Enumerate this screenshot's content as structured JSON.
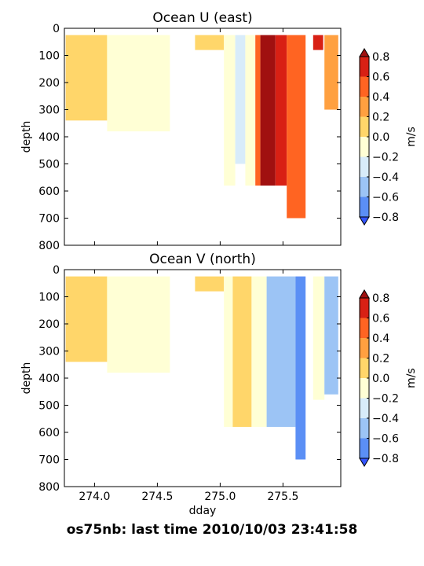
{
  "footer": {
    "text": "os75nb: last time 2010/10/03 23:41:58"
  },
  "colormap": {
    "levels": [
      -0.8,
      -0.6,
      -0.4,
      -0.2,
      0.0,
      0.2,
      0.4,
      0.6,
      0.8
    ],
    "colors": [
      "#3355ff",
      "#5b8ff5",
      "#9cc4f5",
      "#d8ecfa",
      "#ffffd5",
      "#ffd66a",
      "#ffa040",
      "#ff6422",
      "#d82014",
      "#a01010"
    ],
    "tick_labels": [
      "0.8",
      "0.6",
      "0.4",
      "0.2",
      "0.0",
      "−0.2",
      "−0.4",
      "−0.6",
      "−0.8"
    ],
    "unit_label": "m/s"
  },
  "chart_data": [
    {
      "type": "heatmap",
      "title": "Ocean U (east)",
      "xlabel": "",
      "ylabel": "depth",
      "xlim": [
        273.76,
        275.96
      ],
      "ylim": [
        800,
        0
      ],
      "yticks": [
        "0",
        "100",
        "200",
        "300",
        "400",
        "500",
        "600",
        "700",
        "800"
      ],
      "xtick_values": [
        274.0,
        274.5,
        275.0,
        275.5
      ],
      "grid": false,
      "colorbar": "right",
      "bands": [
        {
          "x0": 273.77,
          "x1": 274.1,
          "top": 25,
          "bottom": 340,
          "value": 0.05
        },
        {
          "x0": 274.1,
          "x1": 274.6,
          "top": 25,
          "bottom": 380,
          "value": -0.05
        },
        {
          "x0": 274.8,
          "x1": 275.03,
          "top": 25,
          "bottom": 80,
          "value": 0.05
        },
        {
          "x0": 275.03,
          "x1": 275.12,
          "top": 25,
          "bottom": 580,
          "value": -0.1
        },
        {
          "x0": 275.12,
          "x1": 275.2,
          "top": 25,
          "bottom": 500,
          "value": -0.3
        },
        {
          "x0": 275.2,
          "x1": 275.28,
          "top": 25,
          "bottom": 580,
          "value": -0.1
        },
        {
          "x0": 275.28,
          "x1": 275.32,
          "top": 25,
          "bottom": 580,
          "value": 0.5
        },
        {
          "x0": 275.32,
          "x1": 275.44,
          "top": 25,
          "bottom": 580,
          "value": 0.9
        },
        {
          "x0": 275.44,
          "x1": 275.53,
          "top": 25,
          "bottom": 580,
          "value": 0.7
        },
        {
          "x0": 275.53,
          "x1": 275.68,
          "top": 25,
          "bottom": 700,
          "value": 0.5
        },
        {
          "x0": 275.74,
          "x1": 275.82,
          "top": 25,
          "bottom": 80,
          "value": 0.7
        },
        {
          "x0": 275.83,
          "x1": 275.94,
          "top": 25,
          "bottom": 300,
          "value": 0.3
        }
      ]
    },
    {
      "type": "heatmap",
      "title": "Ocean V (north)",
      "xlabel": "dday",
      "ylabel": "depth",
      "xlim": [
        273.76,
        275.96
      ],
      "ylim": [
        800,
        0
      ],
      "yticks": [
        "0",
        "100",
        "200",
        "300",
        "400",
        "500",
        "600",
        "700",
        "800"
      ],
      "xtick_values": [
        274.0,
        274.5,
        275.0,
        275.5
      ],
      "xtick_labels": [
        "274.0",
        "274.5",
        "275.0",
        "275.5"
      ],
      "grid": false,
      "colorbar": "right",
      "bands": [
        {
          "x0": 273.77,
          "x1": 274.1,
          "top": 25,
          "bottom": 340,
          "value": 0.05
        },
        {
          "x0": 274.1,
          "x1": 274.6,
          "top": 25,
          "bottom": 380,
          "value": -0.05
        },
        {
          "x0": 274.8,
          "x1": 275.03,
          "top": 25,
          "bottom": 80,
          "value": 0.05
        },
        {
          "x0": 275.03,
          "x1": 275.1,
          "top": 25,
          "bottom": 580,
          "value": -0.1
        },
        {
          "x0": 275.1,
          "x1": 275.25,
          "top": 25,
          "bottom": 580,
          "value": 0.1
        },
        {
          "x0": 275.25,
          "x1": 275.37,
          "top": 25,
          "bottom": 580,
          "value": -0.1
        },
        {
          "x0": 275.37,
          "x1": 275.6,
          "top": 25,
          "bottom": 580,
          "value": -0.5
        },
        {
          "x0": 275.6,
          "x1": 275.68,
          "top": 25,
          "bottom": 700,
          "value": -0.7
        },
        {
          "x0": 275.74,
          "x1": 275.83,
          "top": 25,
          "bottom": 480,
          "value": -0.1
        },
        {
          "x0": 275.83,
          "x1": 275.94,
          "top": 25,
          "bottom": 460,
          "value": -0.5
        }
      ]
    }
  ]
}
